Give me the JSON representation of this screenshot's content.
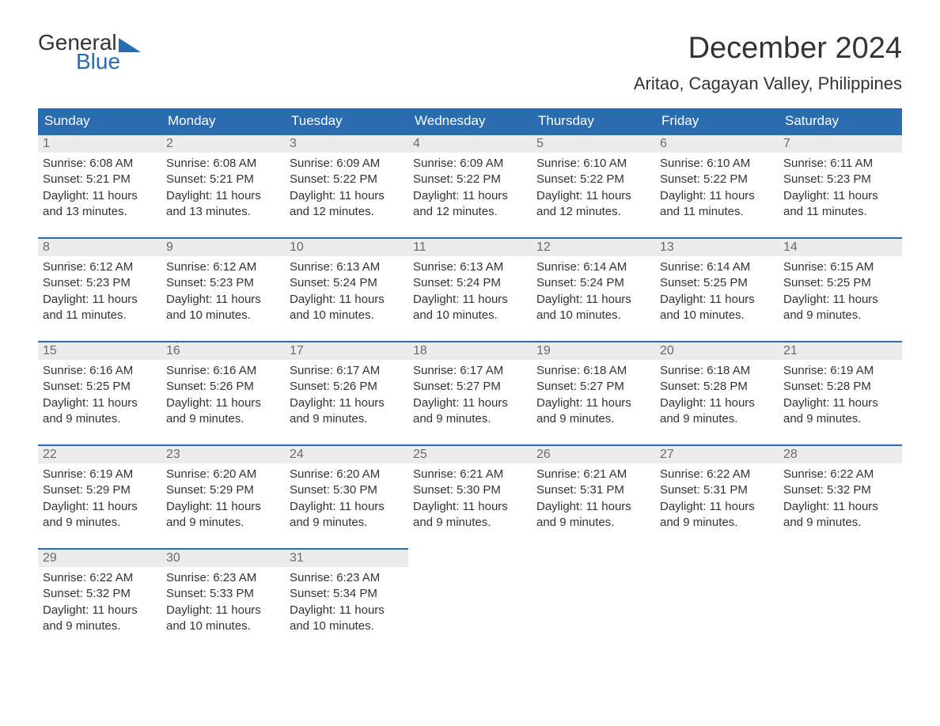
{
  "logo": {
    "top": "General",
    "bottom": "Blue"
  },
  "title": "December 2024",
  "location": "Aritao, Cagayan Valley, Philippines",
  "colors": {
    "header_bg": "#2a6cb0",
    "header_text": "#ffffff",
    "daynum_bg": "#ececec",
    "daynum_border": "#2a6cb0",
    "text": "#333333",
    "logo_blue": "#2a6cb0"
  },
  "day_labels": [
    "Sunday",
    "Monday",
    "Tuesday",
    "Wednesday",
    "Thursday",
    "Friday",
    "Saturday"
  ],
  "weeks": [
    [
      {
        "n": "1",
        "sr": "6:08 AM",
        "ss": "5:21 PM",
        "dl": "11 hours and 13 minutes."
      },
      {
        "n": "2",
        "sr": "6:08 AM",
        "ss": "5:21 PM",
        "dl": "11 hours and 13 minutes."
      },
      {
        "n": "3",
        "sr": "6:09 AM",
        "ss": "5:22 PM",
        "dl": "11 hours and 12 minutes."
      },
      {
        "n": "4",
        "sr": "6:09 AM",
        "ss": "5:22 PM",
        "dl": "11 hours and 12 minutes."
      },
      {
        "n": "5",
        "sr": "6:10 AM",
        "ss": "5:22 PM",
        "dl": "11 hours and 12 minutes."
      },
      {
        "n": "6",
        "sr": "6:10 AM",
        "ss": "5:22 PM",
        "dl": "11 hours and 11 minutes."
      },
      {
        "n": "7",
        "sr": "6:11 AM",
        "ss": "5:23 PM",
        "dl": "11 hours and 11 minutes."
      }
    ],
    [
      {
        "n": "8",
        "sr": "6:12 AM",
        "ss": "5:23 PM",
        "dl": "11 hours and 11 minutes."
      },
      {
        "n": "9",
        "sr": "6:12 AM",
        "ss": "5:23 PM",
        "dl": "11 hours and 10 minutes."
      },
      {
        "n": "10",
        "sr": "6:13 AM",
        "ss": "5:24 PM",
        "dl": "11 hours and 10 minutes."
      },
      {
        "n": "11",
        "sr": "6:13 AM",
        "ss": "5:24 PM",
        "dl": "11 hours and 10 minutes."
      },
      {
        "n": "12",
        "sr": "6:14 AM",
        "ss": "5:24 PM",
        "dl": "11 hours and 10 minutes."
      },
      {
        "n": "13",
        "sr": "6:14 AM",
        "ss": "5:25 PM",
        "dl": "11 hours and 10 minutes."
      },
      {
        "n": "14",
        "sr": "6:15 AM",
        "ss": "5:25 PM",
        "dl": "11 hours and 9 minutes."
      }
    ],
    [
      {
        "n": "15",
        "sr": "6:16 AM",
        "ss": "5:25 PM",
        "dl": "11 hours and 9 minutes."
      },
      {
        "n": "16",
        "sr": "6:16 AM",
        "ss": "5:26 PM",
        "dl": "11 hours and 9 minutes."
      },
      {
        "n": "17",
        "sr": "6:17 AM",
        "ss": "5:26 PM",
        "dl": "11 hours and 9 minutes."
      },
      {
        "n": "18",
        "sr": "6:17 AM",
        "ss": "5:27 PM",
        "dl": "11 hours and 9 minutes."
      },
      {
        "n": "19",
        "sr": "6:18 AM",
        "ss": "5:27 PM",
        "dl": "11 hours and 9 minutes."
      },
      {
        "n": "20",
        "sr": "6:18 AM",
        "ss": "5:28 PM",
        "dl": "11 hours and 9 minutes."
      },
      {
        "n": "21",
        "sr": "6:19 AM",
        "ss": "5:28 PM",
        "dl": "11 hours and 9 minutes."
      }
    ],
    [
      {
        "n": "22",
        "sr": "6:19 AM",
        "ss": "5:29 PM",
        "dl": "11 hours and 9 minutes."
      },
      {
        "n": "23",
        "sr": "6:20 AM",
        "ss": "5:29 PM",
        "dl": "11 hours and 9 minutes."
      },
      {
        "n": "24",
        "sr": "6:20 AM",
        "ss": "5:30 PM",
        "dl": "11 hours and 9 minutes."
      },
      {
        "n": "25",
        "sr": "6:21 AM",
        "ss": "5:30 PM",
        "dl": "11 hours and 9 minutes."
      },
      {
        "n": "26",
        "sr": "6:21 AM",
        "ss": "5:31 PM",
        "dl": "11 hours and 9 minutes."
      },
      {
        "n": "27",
        "sr": "6:22 AM",
        "ss": "5:31 PM",
        "dl": "11 hours and 9 minutes."
      },
      {
        "n": "28",
        "sr": "6:22 AM",
        "ss": "5:32 PM",
        "dl": "11 hours and 9 minutes."
      }
    ],
    [
      {
        "n": "29",
        "sr": "6:22 AM",
        "ss": "5:32 PM",
        "dl": "11 hours and 9 minutes."
      },
      {
        "n": "30",
        "sr": "6:23 AM",
        "ss": "5:33 PM",
        "dl": "11 hours and 10 minutes."
      },
      {
        "n": "31",
        "sr": "6:23 AM",
        "ss": "5:34 PM",
        "dl": "11 hours and 10 minutes."
      },
      null,
      null,
      null,
      null
    ]
  ],
  "labels": {
    "sunrise": "Sunrise: ",
    "sunset": "Sunset: ",
    "daylight": "Daylight: "
  }
}
